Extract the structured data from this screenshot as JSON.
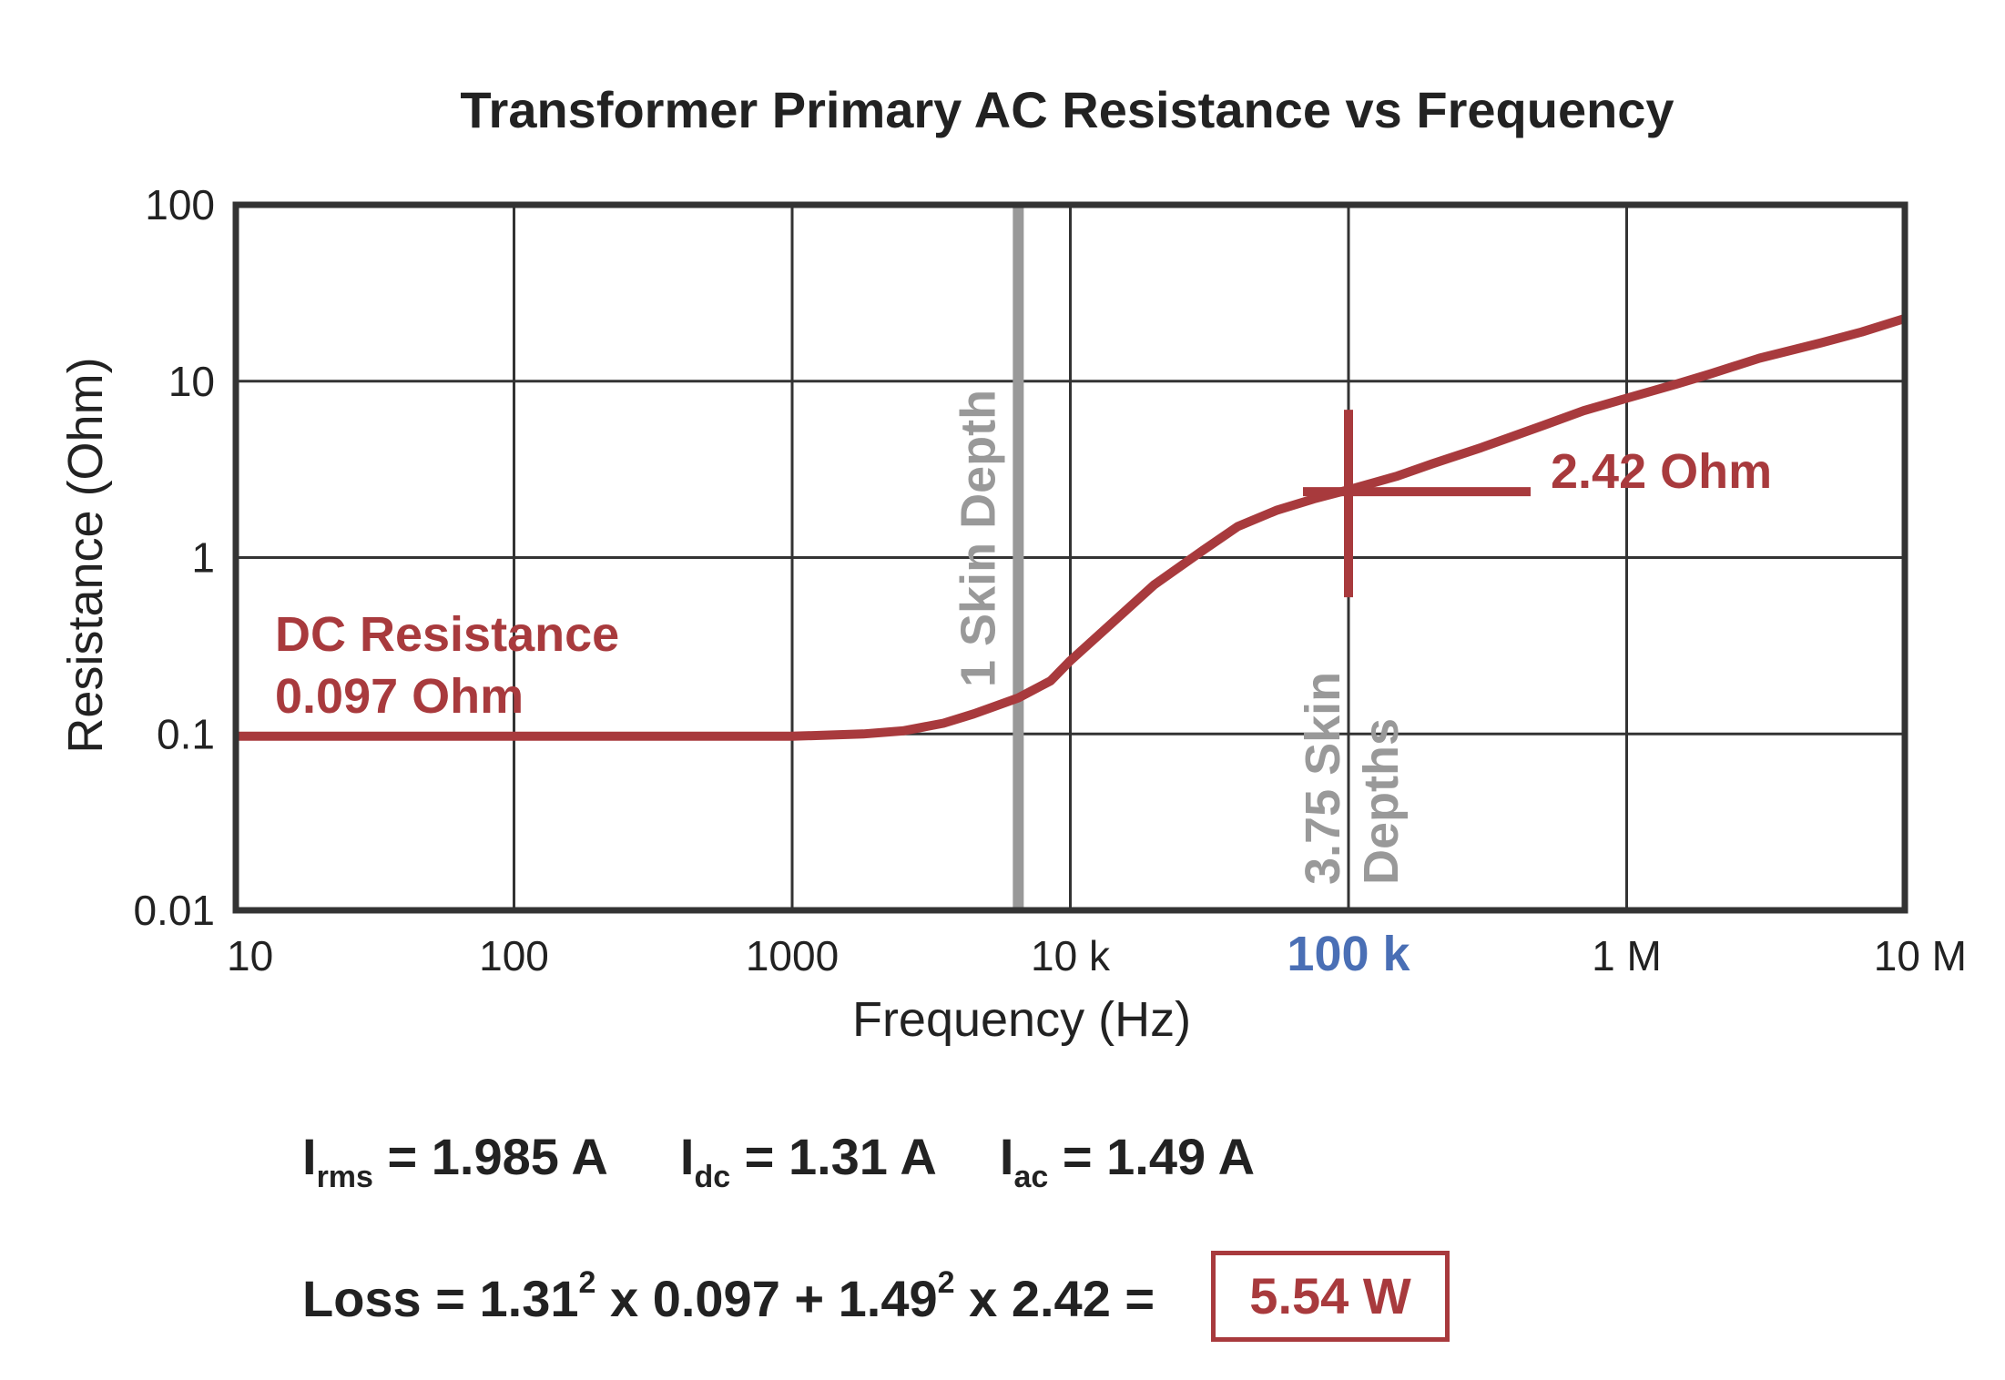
{
  "chart_data": {
    "type": "line",
    "title": "Transformer Primary AC Resistance vs Frequency",
    "xlabel": "Frequency (Hz)",
    "ylabel": "Resistance (Ohm)",
    "xscale": "log",
    "yscale": "log",
    "xlim": [
      10,
      10000000
    ],
    "ylim": [
      0.01,
      100
    ],
    "grid": true,
    "x_ticks": [
      {
        "value": 10,
        "label": "10"
      },
      {
        "value": 100,
        "label": "100"
      },
      {
        "value": 1000,
        "label": "1000"
      },
      {
        "value": 10000,
        "label": "10 k"
      },
      {
        "value": 100000,
        "label": "100 k"
      },
      {
        "value": 1000000,
        "label": "1 M"
      },
      {
        "value": 10000000,
        "label": "10 M"
      }
    ],
    "y_ticks": [
      {
        "value": 0.01,
        "label": "0.01"
      },
      {
        "value": 0.1,
        "label": "0.1"
      },
      {
        "value": 1,
        "label": "1"
      },
      {
        "value": 10,
        "label": "10"
      },
      {
        "value": 100,
        "label": "100"
      }
    ],
    "series": [
      {
        "x": [
          10,
          100,
          1000,
          1800,
          2500,
          3500,
          4500,
          6500,
          8500,
          10000,
          14000,
          20000,
          30000,
          40000,
          55000,
          75000,
          100000,
          150000,
          200000,
          300000,
          500000,
          700000,
          1000000,
          1500000,
          2000000,
          3000000,
          5000000,
          7000000,
          10000000
        ],
        "y": [
          0.097,
          0.097,
          0.097,
          0.1,
          0.104,
          0.115,
          0.13,
          0.16,
          0.2,
          0.26,
          0.42,
          0.7,
          1.1,
          1.5,
          1.85,
          2.15,
          2.42,
          2.9,
          3.4,
          4.2,
          5.6,
          6.8,
          8.0,
          9.6,
          11.0,
          13.5,
          16.5,
          19.0,
          22.5
        ],
        "color": "#a83a3d"
      }
    ],
    "reference_lines": [
      {
        "x": 6500,
        "label": "1 Skin Depth",
        "color": "#999999"
      }
    ],
    "marker": {
      "x": 100000,
      "y": 2.42,
      "label": "2.42 Ohm",
      "color": "#a83a3d"
    },
    "annotations": [
      {
        "text": "DC Resistance",
        "color": "#a83a3d"
      },
      {
        "text": "0.097 Ohm",
        "color": "#a83a3d"
      },
      {
        "text": "3.75 Skin",
        "color": "#999999"
      },
      {
        "text": "Depths",
        "color": "#999999"
      }
    ],
    "highlight_tick": {
      "value": 100000,
      "color": "#4a6fb5"
    }
  },
  "equations": {
    "irms_sym": "I",
    "irms_sub": "rms",
    "irms_val": " = 1.985 A",
    "idc_sym": "I",
    "idc_sub": "dc",
    "idc_val": " = 1.31 A",
    "iac_sym": "I",
    "iac_sub": "ac",
    "iac_val": " = 1.49 A",
    "loss_a": "Loss = 1.31",
    "sq1": "2",
    "loss_b": " x 0.097 + 1.49",
    "sq2": "2",
    "loss_c": " x 2.42 = ",
    "result": "5.54 W"
  },
  "colors": {
    "curve": "#a83a3d",
    "grid": "#333333",
    "reference": "#999999",
    "highlight": "#4a6fb5",
    "text": "#222222"
  }
}
